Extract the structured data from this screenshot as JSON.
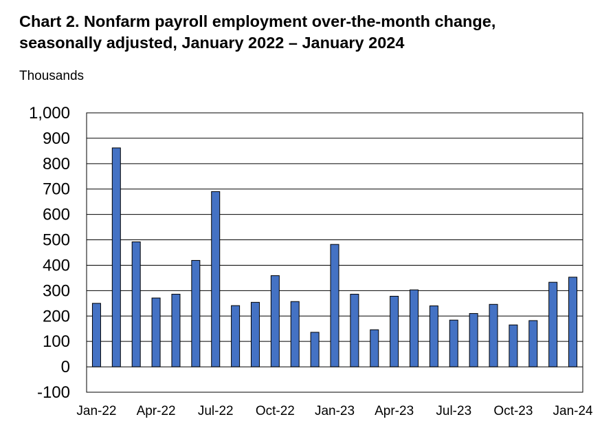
{
  "chart_data": {
    "type": "bar",
    "title": "Chart 2. Nonfarm payroll employment over-the-month change, seasonally adjusted, January 2022 – January 2024",
    "title_lines": [
      "Chart 2. Nonfarm payroll employment over-the-month change,",
      "seasonally adjusted, January 2022 – January 2024"
    ],
    "ylabel": "Thousands",
    "xlabel": "",
    "ylim": [
      -100,
      1000
    ],
    "yticks": [
      -100,
      0,
      100,
      200,
      300,
      400,
      500,
      600,
      700,
      800,
      900,
      1000
    ],
    "ytick_labels": [
      "-100",
      "0",
      "100",
      "200",
      "300",
      "400",
      "500",
      "600",
      "700",
      "800",
      "900",
      "1,000"
    ],
    "grid": true,
    "bar_color": "#4472C4",
    "categories": [
      "Jan-22",
      "Feb-22",
      "Mar-22",
      "Apr-22",
      "May-22",
      "Jun-22",
      "Jul-22",
      "Aug-22",
      "Sep-22",
      "Oct-22",
      "Nov-22",
      "Dec-22",
      "Jan-23",
      "Feb-23",
      "Mar-23",
      "Apr-23",
      "May-23",
      "Jun-23",
      "Jul-23",
      "Aug-23",
      "Sep-23",
      "Oct-23",
      "Nov-23",
      "Dec-23",
      "Jan-24"
    ],
    "values": [
      250,
      862,
      492,
      271,
      286,
      419,
      690,
      241,
      254,
      359,
      257,
      136,
      482,
      286,
      146,
      278,
      303,
      240,
      184,
      210,
      246,
      165,
      182,
      333,
      353
    ],
    "xtick_labels": [
      "Jan-22",
      "Apr-22",
      "Jul-22",
      "Oct-22",
      "Jan-23",
      "Apr-23",
      "Jul-23",
      "Oct-23",
      "Jan-24"
    ],
    "xtick_indices": [
      0,
      3,
      6,
      9,
      12,
      15,
      18,
      21,
      24
    ]
  }
}
